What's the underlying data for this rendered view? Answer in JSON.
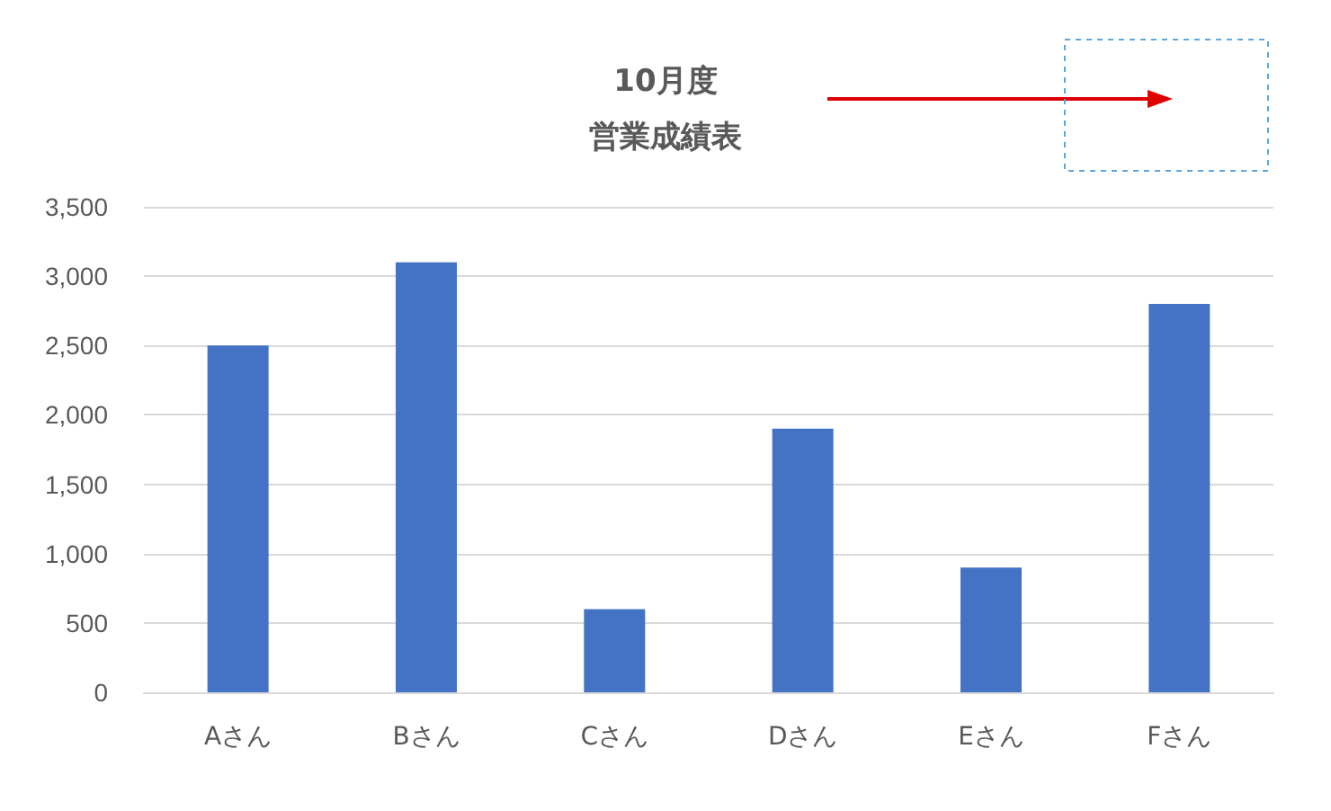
{
  "chart_data": {
    "type": "bar",
    "title": "10月度",
    "subtitle": "営業成績表",
    "categories": [
      "Aさん",
      "Bさん",
      "Cさん",
      "Dさん",
      "Eさん",
      "Fさん"
    ],
    "values": [
      2500,
      3100,
      600,
      1900,
      900,
      2800
    ],
    "color": "#4472c4",
    "ylim": [
      0,
      3500
    ],
    "yticks": [
      0,
      500,
      {
        "value": 1000,
        "label": "1,000"
      },
      {
        "value": 1500,
        "label": "1,500"
      },
      {
        "value": 2000,
        "label": "2,000"
      },
      {
        "value": 2500,
        "label": "2,500"
      },
      {
        "value": 3000,
        "label": "3,000"
      },
      {
        "value": 3500,
        "label": "3,500"
      }
    ],
    "grid": "y"
  }
}
